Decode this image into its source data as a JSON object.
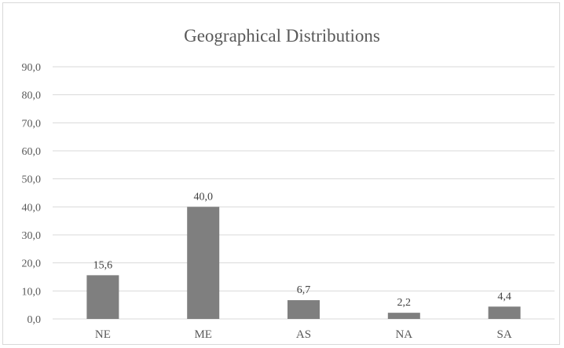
{
  "chart_data": {
    "type": "bar",
    "title": "Geographical Distributions",
    "xlabel": "",
    "ylabel": "",
    "categories": [
      "NE",
      "ME",
      "AS",
      "NA",
      "SA"
    ],
    "values": [
      15.6,
      40.0,
      6.7,
      2.2,
      4.4
    ],
    "data_labels": [
      "15,6",
      "40,0",
      "6,7",
      "2,2",
      "4,4"
    ],
    "y_ticks": [
      "0,0",
      "10,0",
      "20,0",
      "30,0",
      "40,0",
      "50,0",
      "60,0",
      "70,0",
      "80,0",
      "90,0"
    ],
    "ylim": [
      0,
      90
    ],
    "grid": true,
    "legend": "none",
    "colors": {
      "bar": "#7f7f7f",
      "grid": "#d9d9d9",
      "text": "#595959"
    }
  }
}
